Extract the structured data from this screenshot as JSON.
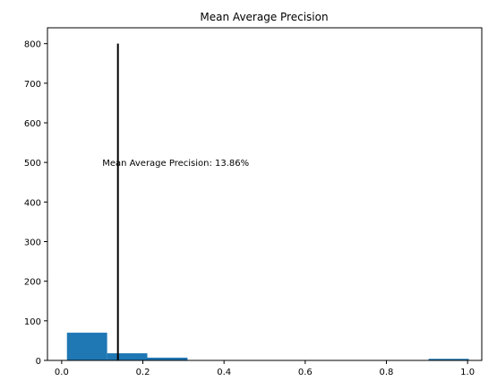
{
  "chart_data": {
    "type": "bar",
    "title": "Mean Average Precision",
    "xlabel": "",
    "ylabel": "",
    "xlim": [
      -0.035,
      1.035
    ],
    "ylim": [
      0,
      840
    ],
    "x_ticks": [
      0.0,
      0.2,
      0.4,
      0.6,
      0.8,
      1.0
    ],
    "x_tick_labels": [
      "0.0",
      "0.2",
      "0.4",
      "0.6",
      "0.8",
      "1.0"
    ],
    "y_ticks": [
      0,
      100,
      200,
      300,
      400,
      500,
      600,
      700,
      800
    ],
    "y_tick_labels": [
      "0",
      "100",
      "200",
      "300",
      "400",
      "500",
      "600",
      "700",
      "800"
    ],
    "bins": [
      {
        "start": 0.013,
        "end": 0.112,
        "count": 70
      },
      {
        "start": 0.112,
        "end": 0.211,
        "count": 18
      },
      {
        "start": 0.211,
        "end": 0.31,
        "count": 7
      },
      {
        "start": 0.31,
        "end": 0.409,
        "count": 0
      },
      {
        "start": 0.409,
        "end": 0.508,
        "count": 0
      },
      {
        "start": 0.508,
        "end": 0.607,
        "count": 0
      },
      {
        "start": 0.607,
        "end": 0.706,
        "count": 0
      },
      {
        "start": 0.706,
        "end": 0.805,
        "count": 0
      },
      {
        "start": 0.805,
        "end": 0.904,
        "count": 0
      },
      {
        "start": 0.904,
        "end": 1.003,
        "count": 4
      }
    ],
    "vline": {
      "x": 0.1386,
      "ymin": 0,
      "ymax": 800
    },
    "annotation": {
      "text": "Mean Average Precision: 13.86%",
      "x": 0.1,
      "y": 500
    },
    "grid": false,
    "colors": {
      "bar": "#1f77b4",
      "vline": "#000000"
    }
  }
}
